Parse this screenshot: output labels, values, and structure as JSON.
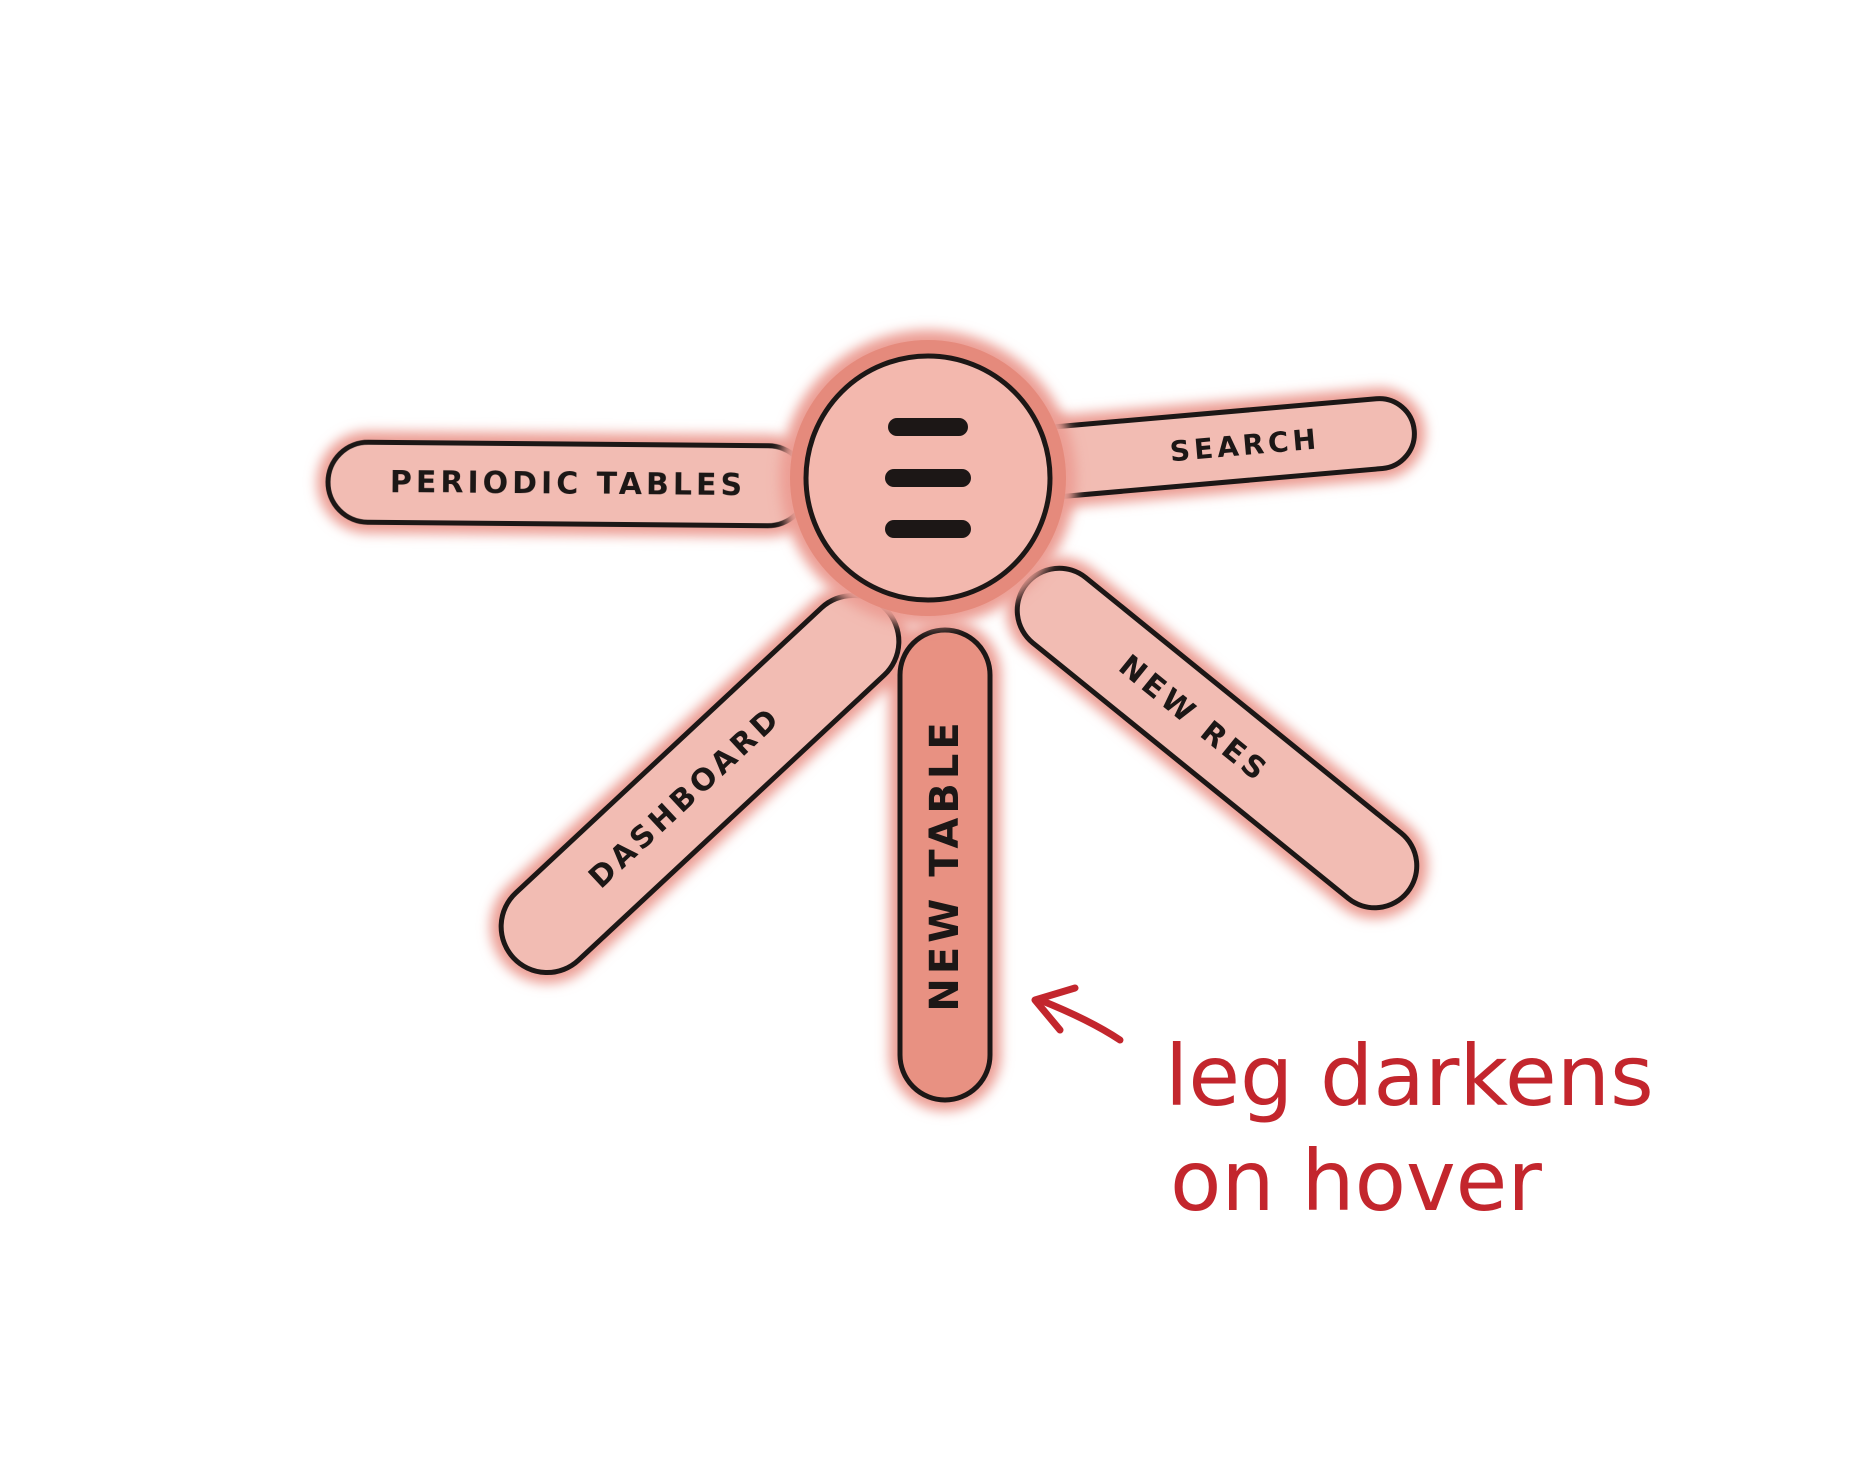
{
  "colors": {
    "leg_fill": "#f2bcb3",
    "leg_hover_fill": "#e89182",
    "glow": "#ec9e94",
    "hub_fill": "#f3b8ae",
    "hub_ring": "#e58a7c",
    "outline": "#1c1716",
    "annotation": "#c3262d",
    "background": "#ffffff"
  },
  "menu": {
    "hub": {
      "icon": "hamburger-menu-icon"
    },
    "legs": [
      {
        "id": "periodic-tables",
        "label": "PERIODIC TABLES",
        "hovered": false
      },
      {
        "id": "search",
        "label": "SEARCH",
        "hovered": false
      },
      {
        "id": "new-res",
        "label": "NEW RES",
        "hovered": false
      },
      {
        "id": "new-table",
        "label": "NEW TABLE",
        "hovered": true
      },
      {
        "id": "dashboard",
        "label": "DASHBOARD",
        "hovered": false
      }
    ]
  },
  "annotation": {
    "line1": "leg darkens",
    "line2": "on hover"
  }
}
